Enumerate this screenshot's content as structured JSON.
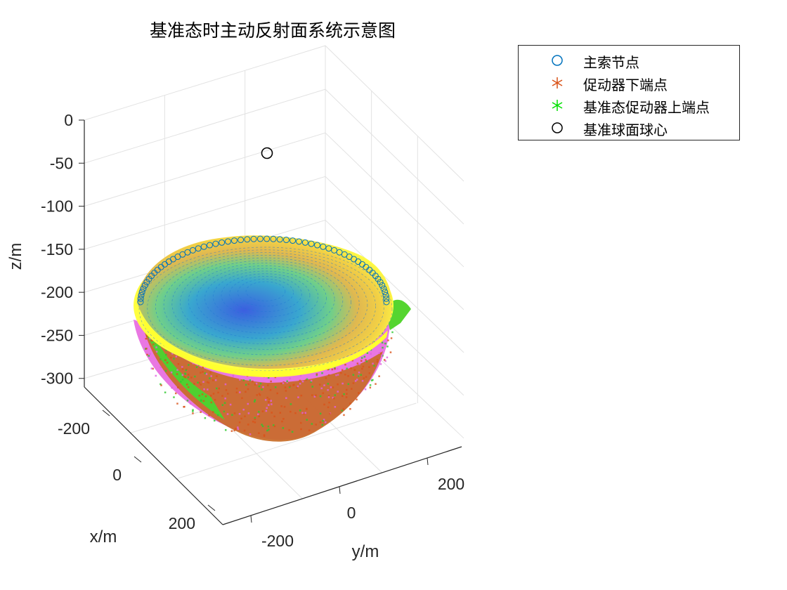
{
  "chart_data": {
    "type": "scatter3d",
    "title": "基准态时主动反射面系统示意图",
    "xlabel": "x/m",
    "ylabel": "y/m",
    "zlabel": "z/m",
    "xlim": [
      -300,
      300
    ],
    "ylim": [
      -300,
      300
    ],
    "zlim": [
      -310,
      0
    ],
    "x_ticks": [
      "-200",
      "0",
      "200"
    ],
    "y_ticks": [
      "-200",
      "0",
      "200"
    ],
    "z_ticks": [
      "0",
      "-50",
      "-100",
      "-150",
      "-200",
      "-250",
      "-300"
    ],
    "grid": true,
    "legend_position": "outside-top-right",
    "series": [
      {
        "name": "主索节点",
        "marker": "circle",
        "color": "#0072BD",
        "note": "paraboloid dish nodes, colored by depth"
      },
      {
        "name": "促动器下端点",
        "marker": "asterisk",
        "color": "#D95319"
      },
      {
        "name": "基准态促动器上端点",
        "marker": "asterisk",
        "color": "#00FF00"
      },
      {
        "name": "基准球面球心",
        "marker": "circle",
        "color": "#000000",
        "x": 0,
        "y": 0,
        "z": -40
      }
    ],
    "surface_colormap": [
      "#3b4cc0",
      "#2fa8c9",
      "#5fd18f",
      "#d6d93a",
      "#f0a030",
      "#ffff33"
    ]
  }
}
